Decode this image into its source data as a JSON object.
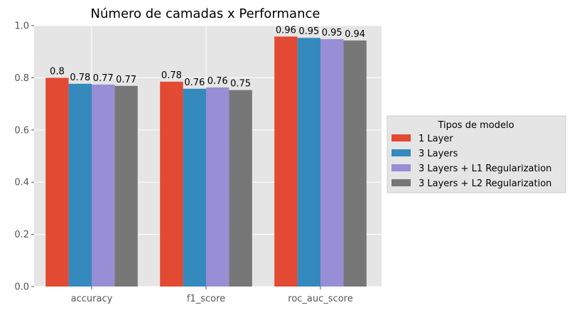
{
  "chart_data": {
    "type": "bar",
    "title": "Número de camadas x Performance",
    "xlabel": "",
    "ylabel": "",
    "ylim": [
      0,
      1.0
    ],
    "yticks": [
      "0.0",
      "0.2",
      "0.4",
      "0.6",
      "0.8",
      "1.0"
    ],
    "categories": [
      "accuracy",
      "f1_score",
      "roc_auc_score"
    ],
    "series": [
      {
        "name": "1 Layer",
        "color": "#E24A33",
        "values": [
          0.8,
          0.785,
          0.958
        ],
        "labels": [
          "0.8",
          "0.78",
          "0.96"
        ]
      },
      {
        "name": "3 Layers",
        "color": "#348ABD",
        "values": [
          0.777,
          0.758,
          0.953
        ],
        "labels": [
          "0.78",
          "0.76",
          "0.95"
        ]
      },
      {
        "name": "3 Layers + L1 Regularization",
        "color": "#988ED5",
        "values": [
          0.774,
          0.763,
          0.948
        ],
        "labels": [
          "0.77",
          "0.76",
          "0.95"
        ]
      },
      {
        "name": "3 Layers + L2 Regularization",
        "color": "#777777",
        "values": [
          0.769,
          0.753,
          0.943
        ],
        "labels": [
          "0.77",
          "0.75",
          "0.94"
        ]
      }
    ],
    "grid": true,
    "legend": {
      "title": "Tipos de modelo",
      "placement": "right"
    }
  }
}
